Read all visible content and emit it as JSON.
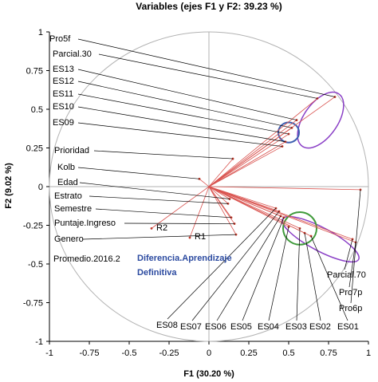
{
  "chart_data": {
    "type": "scatter",
    "title": "Variables (ejes F1 y F2: 39.23 %)",
    "xlabel": "F1 (30.20 %)",
    "ylabel": "F2 (9.02 %)",
    "xlim": [
      -1,
      1
    ],
    "ylim": [
      -1,
      1
    ],
    "xticks": [
      "-1",
      "-0.75",
      "-0.5",
      "-0.25",
      "0",
      "0.25",
      "0.5",
      "0.75",
      "1"
    ],
    "yticks": [
      "1",
      "0.75",
      "0.5",
      "0.25",
      "0",
      "-0.25",
      "-0.5",
      "-0.75",
      "-1"
    ],
    "correlation_circle_radius": 1,
    "colors": {
      "vectors": "#d9534f",
      "leaders": "#000000",
      "circle": "#b3b3b3",
      "upper_ellipse": "#8a3fc6",
      "upper_small_circle": "#3d5fb0",
      "lower_ellipse": "#8a3fc6",
      "lower_circle": "#3f9a3a"
    },
    "variables": [
      {
        "name": "Pro5f",
        "x": 0.79,
        "y": 0.58
      },
      {
        "name": "Parcial.30",
        "x": 0.68,
        "y": 0.57
      },
      {
        "name": "ES13",
        "x": 0.55,
        "y": 0.43
      },
      {
        "name": "ES12",
        "x": 0.52,
        "y": 0.38
      },
      {
        "name": "ES11",
        "x": 0.5,
        "y": 0.34
      },
      {
        "name": "ES10",
        "x": 0.48,
        "y": 0.29
      },
      {
        "name": "ES09",
        "x": 0.46,
        "y": 0.26
      },
      {
        "name": "Prioridad",
        "x": 0.15,
        "y": 0.18
      },
      {
        "name": "Kolb",
        "x": -0.06,
        "y": 0.05
      },
      {
        "name": "Edad",
        "x": 0.13,
        "y": -0.08
      },
      {
        "name": "Estrato",
        "x": 0.12,
        "y": -0.11
      },
      {
        "name": "Semestre",
        "x": 0.14,
        "y": -0.2
      },
      {
        "name": "Puntaje.Ingreso",
        "x": 0.16,
        "y": -0.24
      },
      {
        "name": "Genero",
        "x": 0.17,
        "y": -0.31
      },
      {
        "name": "R2",
        "x": -0.36,
        "y": -0.27
      },
      {
        "name": "R1",
        "x": -0.12,
        "y": -0.33
      },
      {
        "name": "Parcial.70",
        "x": 0.9,
        "y": -0.34
      },
      {
        "name": "Pro7p",
        "x": 0.92,
        "y": -0.36
      },
      {
        "name": "Pro6p",
        "x": 0.95,
        "y": -0.02
      },
      {
        "name": "ES01",
        "x": 0.64,
        "y": -0.32
      },
      {
        "name": "ES02",
        "x": 0.6,
        "y": -0.3
      },
      {
        "name": "ES03",
        "x": 0.57,
        "y": -0.27
      },
      {
        "name": "ES04",
        "x": 0.5,
        "y": -0.26
      },
      {
        "name": "ES05",
        "x": 0.47,
        "y": -0.2
      },
      {
        "name": "ES06",
        "x": 0.45,
        "y": -0.19
      },
      {
        "name": "ES07",
        "x": 0.44,
        "y": -0.16
      },
      {
        "name": "ES08",
        "x": 0.42,
        "y": -0.14
      }
    ],
    "annotations": [
      {
        "text": "Promedio.2016.2"
      },
      {
        "text": "Diferencia.Aprendizaje"
      },
      {
        "text": "Definitiva"
      }
    ]
  }
}
